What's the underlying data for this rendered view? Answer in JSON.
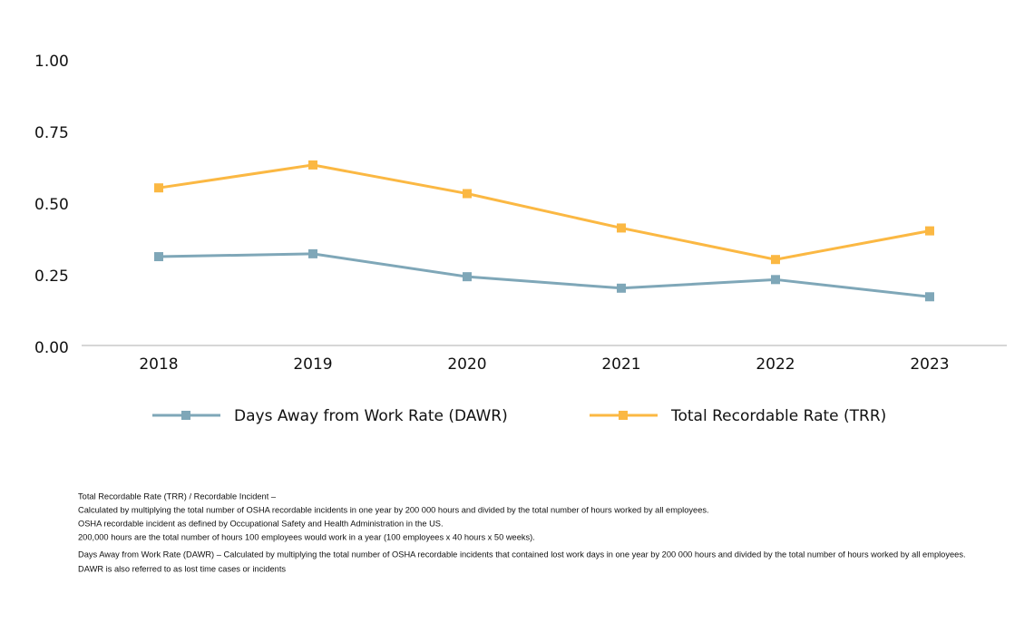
{
  "chart_data": {
    "type": "line",
    "categories": [
      "2018",
      "2019",
      "2020",
      "2021",
      "2022",
      "2023"
    ],
    "series": [
      {
        "name": "Days Away from Work Rate (DAWR)",
        "color": "#7fa7b8",
        "values": [
          0.31,
          0.32,
          0.24,
          0.2,
          0.23,
          0.17
        ]
      },
      {
        "name": "Total Recordable Rate (TRR)",
        "color": "#fbb843",
        "values": [
          0.55,
          0.63,
          0.53,
          0.41,
          0.3,
          0.4
        ]
      }
    ],
    "ylim": [
      0,
      1
    ],
    "yticks": [
      {
        "value": 0,
        "label": "0.00"
      },
      {
        "value": 0.25,
        "label": "0.25"
      },
      {
        "value": 0.5,
        "label": "0.50"
      },
      {
        "value": 0.75,
        "label": "0.75"
      },
      {
        "value": 1,
        "label": "1.00"
      }
    ],
    "grid": false,
    "legend": "bottom",
    "footnotes": [
      "Total Recordable Rate (TRR) / Recordable Incident –",
      "Calculated by multiplying the total number of OSHA recordable incidents in one year by 200 000 hours and divided by the total number of hours worked by all employees.",
      "OSHA recordable incident as defined by Occupational Safety and Health Administration in the US.",
      "200,000 hours are the total number of hours 100 employees would work in a year (100 employees x 40 hours x 50 weeks).",
      "Days Away from Work Rate (DAWR) – Calculated by multiplying the total number of OSHA recordable incidents that contained lost work days in one year by 200 000 hours and divided by the total number of hours worked by all employees.",
      "DAWR is also referred to as lost time cases or incidents"
    ]
  }
}
